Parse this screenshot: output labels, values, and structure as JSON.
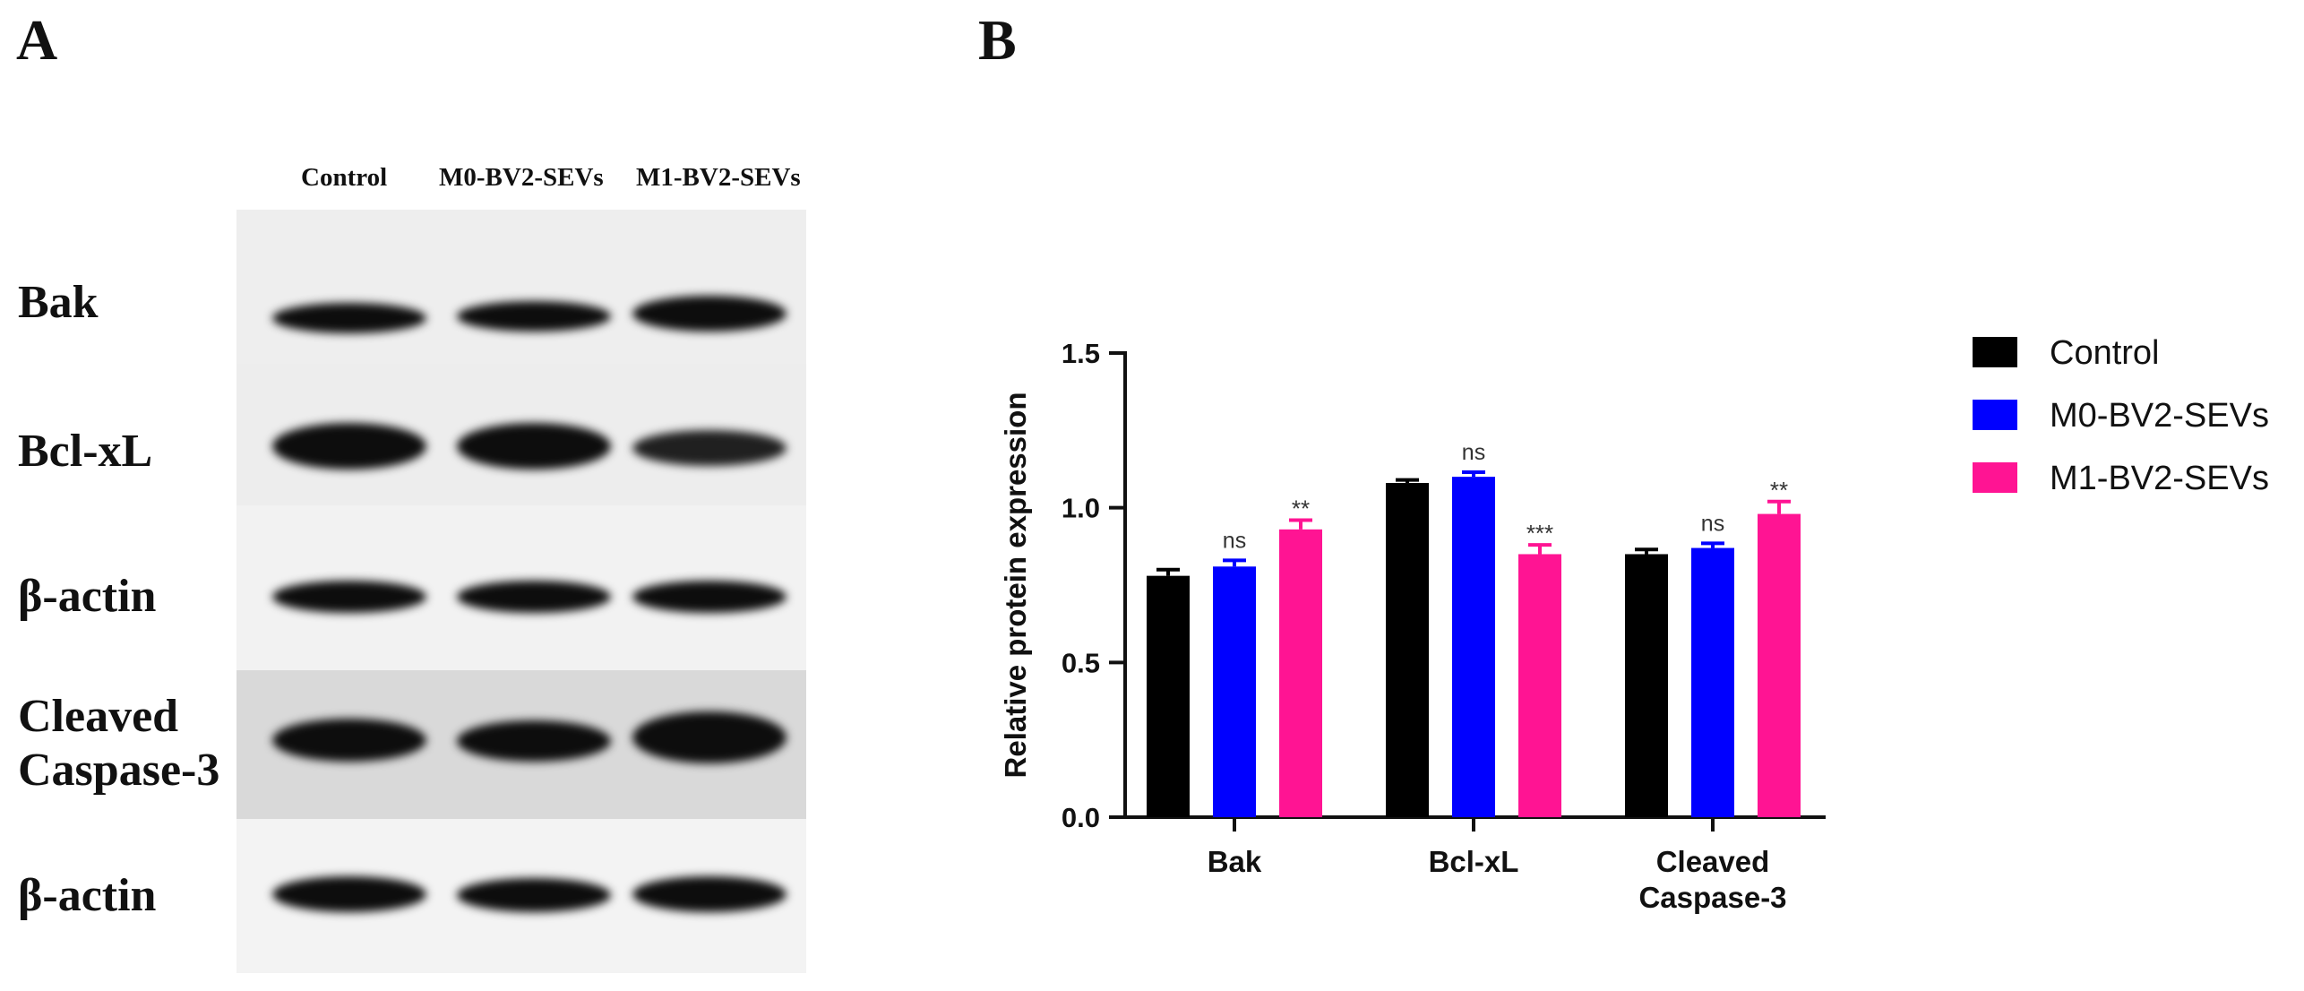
{
  "panels": {
    "a": "A",
    "b": "B"
  },
  "blot": {
    "lanes": [
      "Control",
      "M0-BV2-SEVs",
      "M1-BV2-SEVs"
    ],
    "rows": [
      {
        "label": "Bak"
      },
      {
        "label": "Bcl-xL"
      },
      {
        "label": "β-actin"
      },
      {
        "label_lines": [
          "Cleaved",
          "Caspase-3"
        ]
      },
      {
        "label": "β-actin"
      }
    ]
  },
  "chart_data": {
    "type": "bar",
    "categories": [
      "Bak",
      "Bcl-xL",
      "Cleaved Caspase-3"
    ],
    "category_lines": [
      [
        "Bak"
      ],
      [
        "Bcl-xL"
      ],
      [
        "Cleaved",
        "Caspase-3"
      ]
    ],
    "series": [
      {
        "name": "Control",
        "color": "#000000",
        "values": [
          0.78,
          1.08,
          0.85
        ],
        "errors": [
          0.02,
          0.01,
          0.015
        ],
        "labels": [
          "",
          "",
          ""
        ]
      },
      {
        "name": "M0-BV2-SEVs",
        "color": "#0000ff",
        "values": [
          0.81,
          1.1,
          0.87
        ],
        "errors": [
          0.02,
          0.015,
          0.015
        ],
        "labels": [
          "ns",
          "ns",
          "ns"
        ]
      },
      {
        "name": "M1-BV2-SEVs",
        "color": "#ff1493",
        "values": [
          0.93,
          0.85,
          0.98
        ],
        "errors": [
          0.03,
          0.03,
          0.04
        ],
        "labels": [
          "**",
          "***",
          "**"
        ]
      }
    ],
    "ylabel": "Relative  protein expression",
    "ylim": [
      0,
      1.5
    ],
    "yticks": [
      "0.0",
      "0.5",
      "1.0",
      "1.5"
    ],
    "legend_position": "right"
  }
}
